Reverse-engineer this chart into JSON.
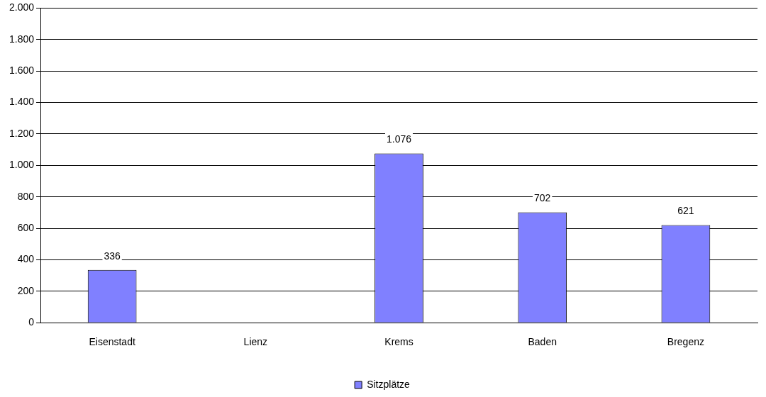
{
  "chart_data": {
    "type": "bar",
    "categories": [
      "Eisenstadt",
      "Lienz",
      "Krems",
      "Baden",
      "Bregenz"
    ],
    "series": [
      {
        "name": "Sitzplätze",
        "color": "#8080ff",
        "values": [
          336,
          null,
          1076,
          702,
          621
        ],
        "value_labels": [
          "336",
          null,
          "1.076",
          "702",
          "621"
        ]
      }
    ],
    "ylim": [
      0,
      2000
    ],
    "yticks": [
      {
        "value": 0,
        "label": "0"
      },
      {
        "value": 200,
        "label": "200"
      },
      {
        "value": 400,
        "label": "400"
      },
      {
        "value": 600,
        "label": "600"
      },
      {
        "value": 800,
        "label": "800"
      },
      {
        "value": 1000,
        "label": "1.000"
      },
      {
        "value": 1200,
        "label": "1.200"
      },
      {
        "value": 1400,
        "label": "1.400"
      },
      {
        "value": 1600,
        "label": "1.600"
      },
      {
        "value": 1800,
        "label": "1.800"
      },
      {
        "value": 2000,
        "label": "2.000"
      }
    ],
    "grid": "y",
    "legend": "bottom"
  }
}
